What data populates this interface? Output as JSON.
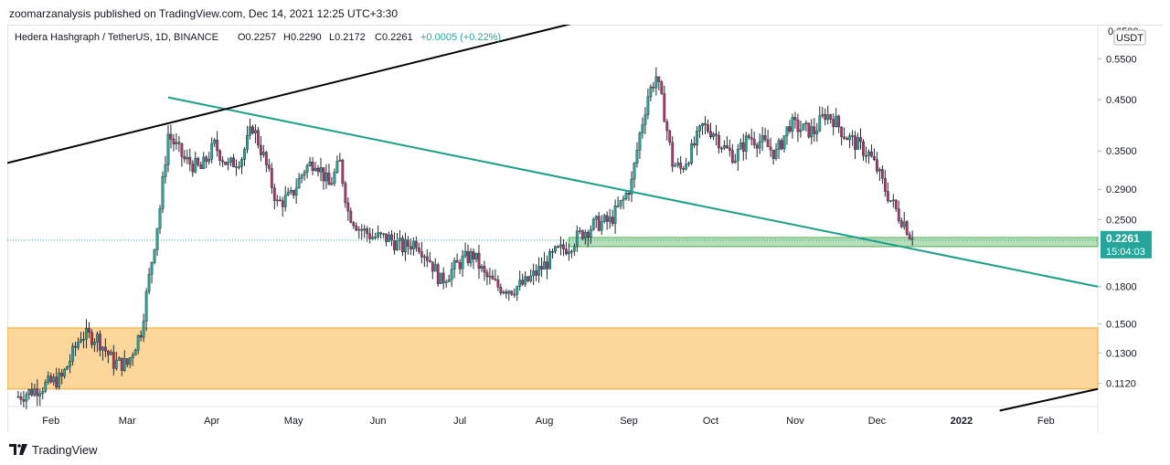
{
  "header": {
    "published_by": "zoomarzanalysis published on TradingView.com, Dec 14, 2021 12:25 UTC+3:30"
  },
  "footer": {
    "brand": "TradingView",
    "logo_icon": "tradingview-logo-icon"
  },
  "legend": {
    "symbol": "Hedera Hashgraph / TetherUS, 1D, BINANCE",
    "open": "O0.2257",
    "high": "H0.2290",
    "low": "L0.2172",
    "close": "C0.2261",
    "change": "+0.0005 (+0.22%)"
  },
  "price_scale": {
    "currency": "USDT",
    "top_partial": "0.6500",
    "last_price": "0.2261",
    "countdown": "15:04:03"
  },
  "colors": {
    "up": "#26a69a",
    "down": "#b5326a",
    "wick": "#1e2a30",
    "trendline_teal": "#1a9e8c",
    "trendline_black": "#000000",
    "support_zone_fill": "#a5d6a7",
    "support_zone_border": "#4caf50",
    "demand_zone_fill": "#fdd69c",
    "demand_zone_border": "#f5a623",
    "last_price_bg": "#26a69a"
  },
  "chart_data": {
    "type": "candlestick",
    "title": "Hedera Hashgraph / TetherUS, 1D, BINANCE",
    "y_scale": "log",
    "ylim": [
      0.1,
      0.65
    ],
    "y_ticks": [
      "0.5500",
      "0.4500",
      "0.3500",
      "0.2900",
      "0.2500",
      "0.1800",
      "0.1500",
      "0.1300",
      "0.1120"
    ],
    "x_ticks": [
      "Feb",
      "Mar",
      "Apr",
      "May",
      "Jun",
      "Jul",
      "Aug",
      "Sep",
      "Oct",
      "Nov",
      "Dec",
      "2022",
      "Feb"
    ],
    "x_tick_dates": [
      "2021-02-01",
      "2021-03-01",
      "2021-04-01",
      "2021-05-01",
      "2021-06-01",
      "2021-07-01",
      "2021-08-01",
      "2021-09-01",
      "2021-10-01",
      "2021-11-01",
      "2021-12-01",
      "2022-01-01",
      "2022-02-01"
    ],
    "xlim": [
      "2021-01-16",
      "2022-02-20"
    ],
    "last_close": 0.2261,
    "price_path": [
      [
        "2021-01-20",
        0.105
      ],
      [
        "2021-02-05",
        0.115
      ],
      [
        "2021-02-12",
        0.142
      ],
      [
        "2021-02-18",
        0.14
      ],
      [
        "2021-02-24",
        0.124
      ],
      [
        "2021-03-01",
        0.123
      ],
      [
        "2021-03-06",
        0.145
      ],
      [
        "2021-03-10",
        0.205
      ],
      [
        "2021-03-13",
        0.265
      ],
      [
        "2021-03-16",
        0.38
      ],
      [
        "2021-03-22",
        0.335
      ],
      [
        "2021-03-28",
        0.32
      ],
      [
        "2021-04-02",
        0.36
      ],
      [
        "2021-04-07",
        0.325
      ],
      [
        "2021-04-12",
        0.34
      ],
      [
        "2021-04-16",
        0.395
      ],
      [
        "2021-04-20",
        0.34
      ],
      [
        "2021-04-25",
        0.27
      ],
      [
        "2021-04-30",
        0.28
      ],
      [
        "2021-05-05",
        0.32
      ],
      [
        "2021-05-09",
        0.335
      ],
      [
        "2021-05-14",
        0.295
      ],
      [
        "2021-05-18",
        0.33
      ],
      [
        "2021-05-21",
        0.26
      ],
      [
        "2021-05-25",
        0.24
      ],
      [
        "2021-05-30",
        0.23
      ],
      [
        "2021-06-05",
        0.228
      ],
      [
        "2021-06-10",
        0.218
      ],
      [
        "2021-06-15",
        0.225
      ],
      [
        "2021-06-20",
        0.205
      ],
      [
        "2021-06-24",
        0.185
      ],
      [
        "2021-06-28",
        0.195
      ],
      [
        "2021-07-02",
        0.205
      ],
      [
        "2021-07-06",
        0.21
      ],
      [
        "2021-07-10",
        0.19
      ],
      [
        "2021-07-15",
        0.18
      ],
      [
        "2021-07-20",
        0.178
      ],
      [
        "2021-07-25",
        0.183
      ],
      [
        "2021-08-01",
        0.2
      ],
      [
        "2021-08-05",
        0.212
      ],
      [
        "2021-08-10",
        0.22
      ],
      [
        "2021-08-15",
        0.235
      ],
      [
        "2021-08-20",
        0.245
      ],
      [
        "2021-08-25",
        0.248
      ],
      [
        "2021-08-30",
        0.275
      ],
      [
        "2021-09-02",
        0.3
      ],
      [
        "2021-09-05",
        0.38
      ],
      [
        "2021-09-08",
        0.46
      ],
      [
        "2021-09-11",
        0.505
      ],
      [
        "2021-09-14",
        0.42
      ],
      [
        "2021-09-17",
        0.33
      ],
      [
        "2021-09-20",
        0.32
      ],
      [
        "2021-09-24",
        0.35
      ],
      [
        "2021-09-28",
        0.395
      ],
      [
        "2021-10-02",
        0.385
      ],
      [
        "2021-10-06",
        0.355
      ],
      [
        "2021-10-10",
        0.34
      ],
      [
        "2021-10-15",
        0.375
      ],
      [
        "2021-10-20",
        0.365
      ],
      [
        "2021-10-25",
        0.345
      ],
      [
        "2021-10-30",
        0.4
      ],
      [
        "2021-11-03",
        0.39
      ],
      [
        "2021-11-08",
        0.385
      ],
      [
        "2021-11-12",
        0.42
      ],
      [
        "2021-11-15",
        0.41
      ],
      [
        "2021-11-19",
        0.38
      ],
      [
        "2021-11-24",
        0.36
      ],
      [
        "2021-11-28",
        0.345
      ],
      [
        "2021-12-01",
        0.32
      ],
      [
        "2021-12-04",
        0.29
      ],
      [
        "2021-12-06",
        0.275
      ],
      [
        "2021-12-09",
        0.255
      ],
      [
        "2021-12-11",
        0.247
      ],
      [
        "2021-12-14",
        0.2261
      ]
    ],
    "annotations": {
      "falling_trendline": {
        "points": [
          [
            "2021-03-16",
            0.455
          ],
          [
            "2022-02-20",
            0.18
          ]
        ]
      },
      "rising_trendline": {
        "points": [
          [
            "2021-01-16",
            0.33
          ],
          [
            "2021-09-01",
            0.7
          ]
        ]
      },
      "rising_trendline_right": {
        "points": [
          [
            "2022-01-15",
            0.098
          ],
          [
            "2022-02-20",
            0.109
          ]
        ]
      },
      "support_zone": {
        "x": [
          "2021-08-10",
          "2022-02-20"
        ],
        "y": [
          0.219,
          0.229
        ]
      },
      "demand_zone": {
        "x": [
          "2021-01-16",
          "2022-02-20"
        ],
        "y": [
          0.109,
          0.147
        ]
      }
    }
  }
}
